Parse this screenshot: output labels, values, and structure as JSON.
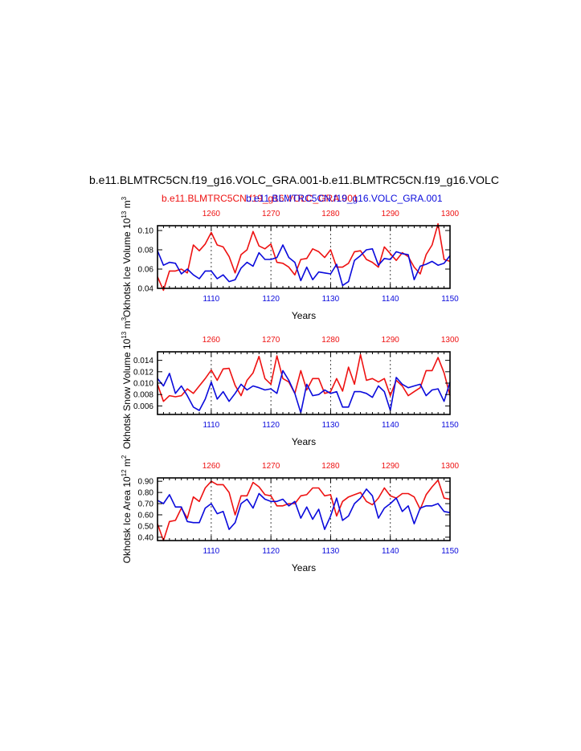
{
  "figure": {
    "title": "b.e11.BLMTRC5CN.f19_g16.VOLC_GRA.001-b.e11.BLMTRC5CN.f19_g16.VOLC",
    "legend_red": "b.e11.BLMTRC5CN.f19_g16.VOLC_GRA.001",
    "legend_blue": "b.e11.BLMTRC5CN.f19_g16.VOLC_GRA.001"
  },
  "colors": {
    "red": "#ee1111",
    "blue": "#0a0adc",
    "axis": "#000000",
    "grid": "#444444"
  },
  "chart_data": [
    {
      "type": "line",
      "ylabel": "Okhotsk Ice Volume 10",
      "ylabel_exp": "13",
      "ylabel_unit": " m",
      "ylabel_unit_exp": "3",
      "xlabel": "Years",
      "ylim": [
        0.04,
        0.105
      ],
      "yticks": [
        "0.04",
        "0.06",
        "0.08",
        "0.10"
      ],
      "ytick_values": [
        0.04,
        0.06,
        0.08,
        0.1
      ],
      "bottom_xlim": [
        1101,
        1150
      ],
      "bottom_xticks": [
        "1110",
        "1120",
        "1130",
        "1140",
        "1150"
      ],
      "top_xlim": [
        1251,
        1300
      ],
      "top_xticks": [
        "1260",
        "1270",
        "1280",
        "1290",
        "1300"
      ],
      "grid_x": [
        1110,
        1120,
        1130,
        1140
      ],
      "series": [
        {
          "color": "red",
          "x_start": 1251,
          "values": [
            0.052,
            0.038,
            0.058,
            0.058,
            0.06,
            0.056,
            0.085,
            0.079,
            0.086,
            0.098,
            0.085,
            0.083,
            0.073,
            0.056,
            0.075,
            0.08,
            0.099,
            0.084,
            0.081,
            0.086,
            0.067,
            0.066,
            0.062,
            0.054,
            0.07,
            0.071,
            0.081,
            0.078,
            0.072,
            0.08,
            0.062,
            0.062,
            0.066,
            0.078,
            0.079,
            0.07,
            0.067,
            0.062,
            0.083,
            0.076,
            0.069,
            0.077,
            0.073,
            0.062,
            0.055,
            0.075,
            0.085,
            0.107,
            0.07,
            0.068
          ]
        },
        {
          "color": "blue",
          "x_start": 1101,
          "values": [
            0.079,
            0.064,
            0.067,
            0.066,
            0.055,
            0.06,
            0.054,
            0.05,
            0.058,
            0.058,
            0.05,
            0.054,
            0.047,
            0.049,
            0.061,
            0.067,
            0.063,
            0.077,
            0.07,
            0.07,
            0.072,
            0.085,
            0.072,
            0.067,
            0.048,
            0.062,
            0.049,
            0.057,
            0.056,
            0.055,
            0.065,
            0.043,
            0.047,
            0.069,
            0.074,
            0.08,
            0.081,
            0.064,
            0.071,
            0.07,
            0.078,
            0.076,
            0.075,
            0.049,
            0.063,
            0.065,
            0.068,
            0.064,
            0.066,
            0.074
          ]
        }
      ]
    },
    {
      "type": "line",
      "ylabel": "Okhotsk Snow Volume 10",
      "ylabel_exp": "13",
      "ylabel_unit": " m",
      "ylabel_unit_exp": "3",
      "xlabel": "Years",
      "ylim": [
        0.0045,
        0.0155
      ],
      "yticks": [
        "0.006",
        "0.008",
        "0.010",
        "0.012",
        "0.014"
      ],
      "ytick_values": [
        0.006,
        0.008,
        0.01,
        0.012,
        0.014
      ],
      "bottom_xlim": [
        1101,
        1150
      ],
      "bottom_xticks": [
        "1110",
        "1120",
        "1130",
        "1140",
        "1150"
      ],
      "top_xlim": [
        1251,
        1300
      ],
      "top_xticks": [
        "1260",
        "1270",
        "1280",
        "1290",
        "1300"
      ],
      "grid_x": [
        1110,
        1120,
        1130,
        1140
      ],
      "series": [
        {
          "color": "red",
          "x_start": 1251,
          "values": [
            0.0098,
            0.0068,
            0.0078,
            0.0076,
            0.0078,
            0.009,
            0.0082,
            0.0095,
            0.0108,
            0.0123,
            0.0105,
            0.0125,
            0.0126,
            0.0096,
            0.0078,
            0.0105,
            0.0118,
            0.0147,
            0.0108,
            0.0098,
            0.0148,
            0.0108,
            0.0102,
            0.0082,
            0.0122,
            0.0088,
            0.0108,
            0.0108,
            0.0082,
            0.0085,
            0.0108,
            0.0086,
            0.0128,
            0.0098,
            0.015,
            0.0105,
            0.0108,
            0.0102,
            0.0108,
            0.0078,
            0.0105,
            0.0095,
            0.0078,
            0.0085,
            0.0092,
            0.0122,
            0.0122,
            0.0145,
            0.0118,
            0.0078
          ]
        },
        {
          "color": "blue",
          "x_start": 1101,
          "values": [
            0.0108,
            0.0095,
            0.0117,
            0.0082,
            0.0095,
            0.0078,
            0.0058,
            0.0052,
            0.0072,
            0.0102,
            0.0072,
            0.0085,
            0.0068,
            0.0082,
            0.0098,
            0.0088,
            0.0095,
            0.0092,
            0.0088,
            0.009,
            0.0082,
            0.0122,
            0.0105,
            0.0082,
            0.0048,
            0.0098,
            0.0078,
            0.008,
            0.0088,
            0.0082,
            0.0085,
            0.0058,
            0.0058,
            0.0085,
            0.0085,
            0.0082,
            0.0075,
            0.0095,
            0.0085,
            0.0052,
            0.011,
            0.0098,
            0.0092,
            0.0095,
            0.0098,
            0.0078,
            0.0088,
            0.009,
            0.0068,
            0.0102
          ]
        }
      ]
    },
    {
      "type": "line",
      "ylabel": "Okhotsk Ice Area 10",
      "ylabel_exp": "12",
      "ylabel_unit": " m",
      "ylabel_unit_exp": "2",
      "xlabel": "Years",
      "ylim": [
        0.37,
        0.93
      ],
      "yticks": [
        "0.40",
        "0.50",
        "0.60",
        "0.70",
        "0.80",
        "0.90"
      ],
      "ytick_values": [
        0.4,
        0.5,
        0.6,
        0.7,
        0.8,
        0.9
      ],
      "bottom_xlim": [
        1101,
        1150
      ],
      "bottom_xticks": [
        "1110",
        "1120",
        "1130",
        "1140",
        "1150"
      ],
      "top_xlim": [
        1251,
        1300
      ],
      "top_xticks": [
        "1260",
        "1270",
        "1280",
        "1290",
        "1300"
      ],
      "grid_x": [
        1110,
        1120,
        1130,
        1140
      ],
      "series": [
        {
          "color": "red",
          "x_start": 1251,
          "values": [
            0.52,
            0.37,
            0.54,
            0.55,
            0.66,
            0.57,
            0.76,
            0.72,
            0.84,
            0.9,
            0.87,
            0.87,
            0.8,
            0.6,
            0.77,
            0.77,
            0.89,
            0.85,
            0.78,
            0.77,
            0.68,
            0.68,
            0.7,
            0.7,
            0.77,
            0.78,
            0.84,
            0.84,
            0.77,
            0.78,
            0.59,
            0.72,
            0.76,
            0.78,
            0.8,
            0.72,
            0.69,
            0.75,
            0.84,
            0.77,
            0.75,
            0.79,
            0.79,
            0.76,
            0.65,
            0.78,
            0.85,
            0.91,
            0.75,
            0.74
          ]
        },
        {
          "color": "blue",
          "x_start": 1101,
          "values": [
            0.73,
            0.7,
            0.78,
            0.67,
            0.67,
            0.54,
            0.53,
            0.53,
            0.66,
            0.7,
            0.61,
            0.63,
            0.47,
            0.53,
            0.7,
            0.74,
            0.66,
            0.79,
            0.74,
            0.72,
            0.72,
            0.74,
            0.68,
            0.72,
            0.57,
            0.67,
            0.56,
            0.65,
            0.47,
            0.59,
            0.75,
            0.55,
            0.59,
            0.7,
            0.75,
            0.83,
            0.77,
            0.57,
            0.66,
            0.7,
            0.75,
            0.63,
            0.68,
            0.52,
            0.66,
            0.68,
            0.68,
            0.7,
            0.63,
            0.62
          ]
        }
      ]
    }
  ]
}
